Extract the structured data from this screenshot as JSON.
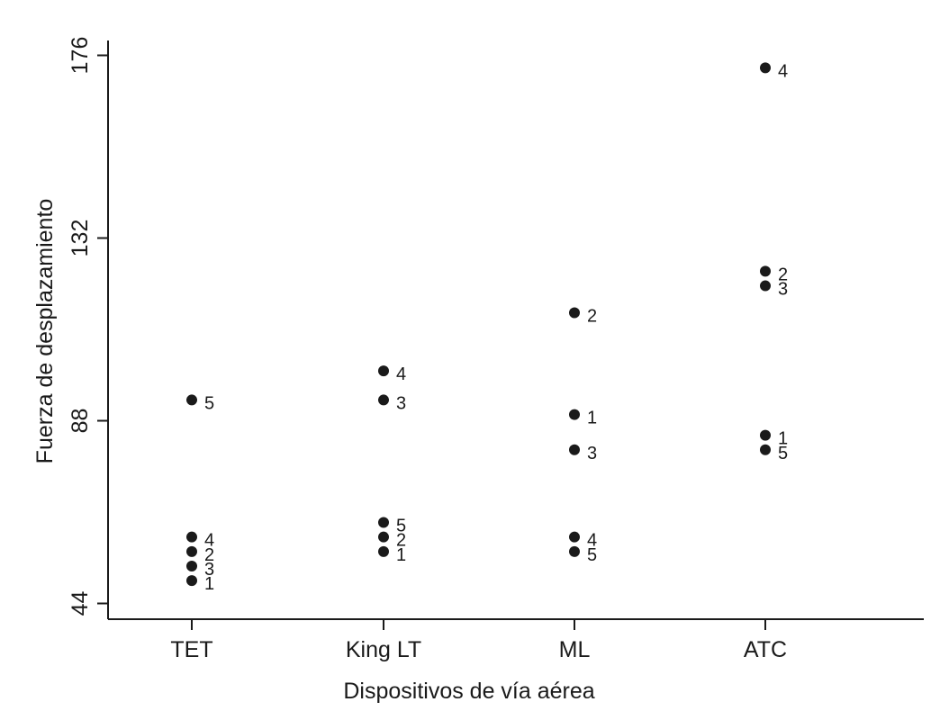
{
  "chart_data": {
    "type": "scatter",
    "title": "",
    "xlabel": "Dispositivos de vía aérea",
    "ylabel": "Fuerza de desplazamiento",
    "categories": [
      "TET",
      "King LT",
      "ML",
      "ATC"
    ],
    "yticks": [
      44,
      88,
      132,
      176
    ],
    "ylim": [
      41,
      179
    ],
    "grid": false,
    "legend": "none",
    "marker_color": "#1a1a1a",
    "points": [
      {
        "category": "TET",
        "y": 93,
        "label": "5"
      },
      {
        "category": "TET",
        "y": 60,
        "label": "4"
      },
      {
        "category": "TET",
        "y": 56.5,
        "label": "2"
      },
      {
        "category": "TET",
        "y": 53,
        "label": "3"
      },
      {
        "category": "TET",
        "y": 49.5,
        "label": "1"
      },
      {
        "category": "King LT",
        "y": 100,
        "label": "4"
      },
      {
        "category": "King LT",
        "y": 93,
        "label": "3"
      },
      {
        "category": "King LT",
        "y": 63.5,
        "label": "5"
      },
      {
        "category": "King LT",
        "y": 60,
        "label": "2"
      },
      {
        "category": "King LT",
        "y": 56.5,
        "label": "1"
      },
      {
        "category": "ML",
        "y": 114,
        "label": "2"
      },
      {
        "category": "ML",
        "y": 89.5,
        "label": "1"
      },
      {
        "category": "ML",
        "y": 81,
        "label": "3"
      },
      {
        "category": "ML",
        "y": 60,
        "label": "4"
      },
      {
        "category": "ML",
        "y": 56.5,
        "label": "5"
      },
      {
        "category": "ATC",
        "y": 173,
        "label": "4"
      },
      {
        "category": "ATC",
        "y": 124,
        "label": "2"
      },
      {
        "category": "ATC",
        "y": 120.5,
        "label": "3"
      },
      {
        "category": "ATC",
        "y": 84.5,
        "label": "1"
      },
      {
        "category": "ATC",
        "y": 81,
        "label": "5"
      }
    ]
  }
}
